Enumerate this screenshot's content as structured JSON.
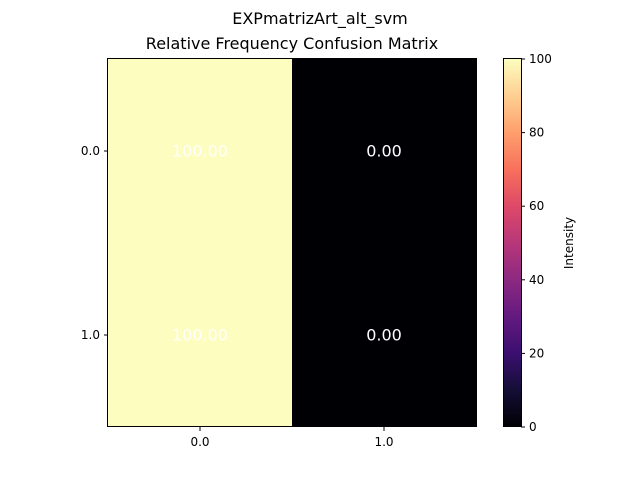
{
  "figure": {
    "suptitle": "EXPmatrizArt_alt_svm"
  },
  "chart_data": {
    "type": "heatmap",
    "title": "Relative Frequency Confusion Matrix",
    "xlabel": "",
    "ylabel": "",
    "x_categories": [
      "0.0",
      "1.0"
    ],
    "y_categories": [
      "0.0",
      "1.0"
    ],
    "values": [
      [
        100.0,
        0.0
      ],
      [
        100.0,
        0.0
      ]
    ],
    "cell_labels": [
      [
        "100.00",
        "0.00"
      ],
      [
        "100.00",
        "0.00"
      ]
    ],
    "colormap": "magma",
    "value_range": [
      0,
      100
    ],
    "colorbar": {
      "label": "Intensity",
      "ticks": [
        "0",
        "20",
        "40",
        "60",
        "80",
        "100"
      ]
    },
    "label_color": "#ffffff",
    "grid": false
  }
}
